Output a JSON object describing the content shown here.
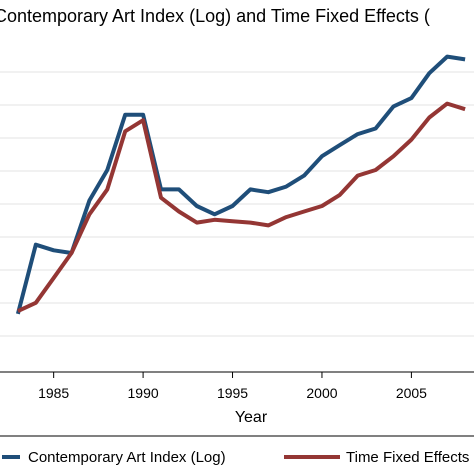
{
  "chart_data": {
    "type": "line",
    "title": "Contemporary Art Index (Log) and Time Fixed Effects (",
    "xlabel": "Year",
    "ylabel": "",
    "x_tick_labels": [
      "1985",
      "1990",
      "1995",
      "2000",
      "2005"
    ],
    "x": [
      1983,
      1984,
      1985,
      1986,
      1987,
      1988,
      1989,
      1990,
      1991,
      1992,
      1993,
      1994,
      1995,
      1996,
      1997,
      1998,
      1999,
      2000,
      2001,
      2002,
      2003,
      2004,
      2005,
      2006,
      2007,
      2008
    ],
    "xlim": [
      1982,
      2008.5
    ],
    "ylim": [
      0,
      12
    ],
    "grid": true,
    "legend_position": "bottom",
    "series": [
      {
        "name": "Contemporary Art Index (Log)",
        "color": "#1f4e79",
        "values": [
          2.1,
          4.6,
          4.4,
          4.3,
          6.2,
          7.3,
          9.3,
          9.3,
          6.6,
          6.6,
          6.0,
          5.7,
          6.0,
          6.6,
          6.5,
          6.7,
          7.1,
          7.8,
          8.2,
          8.6,
          8.8,
          9.6,
          9.9,
          10.8,
          11.4,
          11.3
        ]
      },
      {
        "name": "Time Fixed Effects",
        "color": "#943634",
        "values": [
          2.2,
          2.5,
          3.4,
          4.3,
          5.7,
          6.6,
          8.7,
          9.1,
          6.3,
          5.8,
          5.4,
          5.5,
          5.45,
          5.4,
          5.3,
          5.6,
          5.8,
          6.0,
          6.4,
          7.1,
          7.3,
          7.8,
          8.4,
          9.2,
          9.7,
          9.5
        ]
      }
    ]
  }
}
